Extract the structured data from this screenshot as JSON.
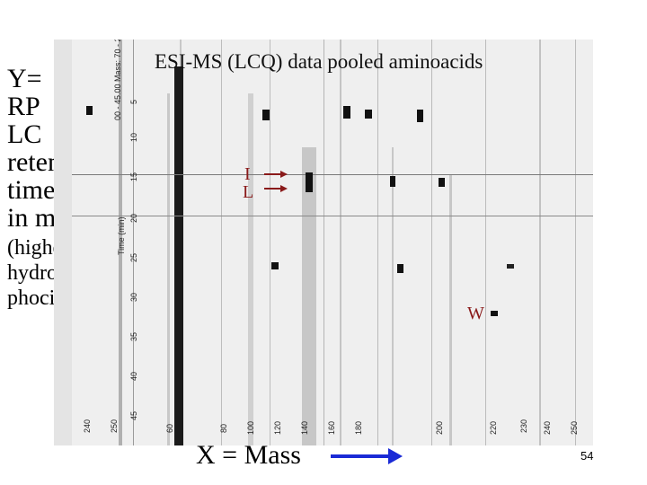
{
  "left_label": {
    "lines_large": [
      "Y=",
      "RP",
      "LC",
      "retention",
      "time",
      "in min."
    ],
    "lines_small": [
      "(higher",
      "hydro-",
      "phocity)"
    ]
  },
  "plot": {
    "title": "ESI-MS (LCQ) data pooled aminoacids",
    "y_tick_labels": [
      "5",
      "10",
      "15",
      "20",
      "25",
      "30",
      "35",
      "40",
      "45"
    ],
    "y_axis_title": "Time (min)",
    "y_axis_header": "00 - 45.00 Mass: 70 - 250 NL: 2.93E7",
    "x_tick_labels": [
      "60",
      "80",
      "100",
      "120",
      "140",
      "160",
      "180",
      "200",
      "220",
      "240"
    ],
    "x_extra_labels": [
      "240",
      "250"
    ],
    "x_right_labels": [
      "230",
      "250"
    ],
    "annotations": {
      "I": "I",
      "L": "L",
      "W": "W"
    },
    "colors": {
      "background": "#efefef",
      "spot": "#000000",
      "arrow": "#1a2ad6",
      "annotation": "#8a1a1a"
    }
  },
  "x_axis_label": "X = Mass",
  "slide_number": "54"
}
